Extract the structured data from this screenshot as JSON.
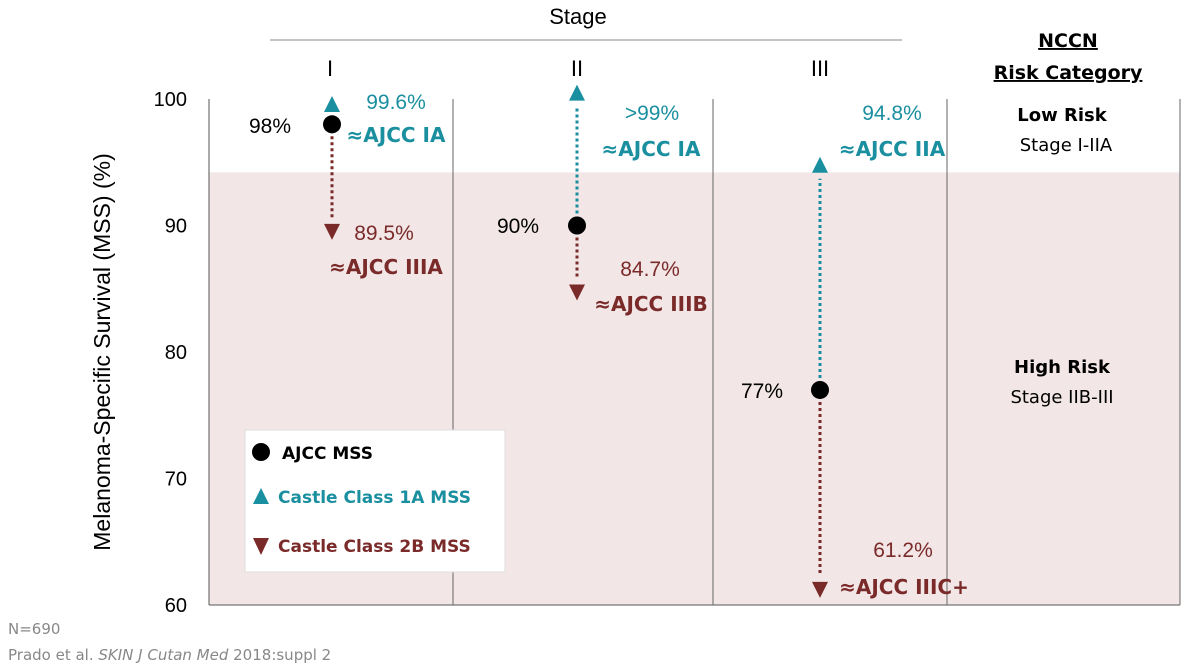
{
  "chart_data": {
    "type": "scatter",
    "top_title": "Stage",
    "categories": [
      "I",
      "II",
      "III"
    ],
    "ylabel": "Melanoma-Specific Survival (MSS) (%)",
    "ylim": [
      60,
      100
    ],
    "yticks": [
      "60",
      "70",
      "80",
      "90",
      "100"
    ],
    "grid": false,
    "risk_boundary": 94.2,
    "colors": {
      "ajcc": "#000000",
      "class1a": "#1a8fa0",
      "class2b": "#7b2a2a",
      "high_risk_band": "#f2e6e6"
    },
    "series": [
      {
        "name": "AJCC MSS",
        "marker": "circle",
        "values": [
          98,
          90,
          77
        ],
        "labels": [
          "98%",
          "90%",
          "77%"
        ]
      },
      {
        "name": "Castle Class 1A MSS",
        "marker": "triangle-up",
        "values": [
          99.6,
          100.5,
          94.8
        ],
        "labels": [
          "99.6%",
          ">99%",
          "94.8%"
        ],
        "equivalents": [
          "≈AJCC IA",
          "≈AJCC IA",
          "≈AJCC IIA"
        ]
      },
      {
        "name": "Castle Class 2B MSS",
        "marker": "triangle-down",
        "values": [
          89.5,
          84.7,
          61.2
        ],
        "labels": [
          "89.5%",
          "84.7%",
          "61.2%"
        ],
        "equivalents": [
          "≈AJCC IIIA",
          "≈AJCC IIIB",
          "≈AJCC IIIC+"
        ]
      }
    ],
    "legend": {
      "placement": "lower-left",
      "entries": [
        "AJCC MSS",
        "Castle Class 1A MSS",
        "Castle Class 2B MSS"
      ]
    },
    "risk_panel": {
      "header_line1": "NCCN",
      "header_line2": "Risk Category",
      "low": {
        "title": "Low Risk",
        "subtitle": "Stage I-IIA"
      },
      "high": {
        "title": "High Risk",
        "subtitle": "Stage IIB-III"
      }
    }
  },
  "footer": {
    "n": "N=690",
    "citation_prefix": "Prado et al.  ",
    "citation_journal": "SKIN J Cutan Med",
    "citation_suffix": " 2018:suppl 2"
  }
}
